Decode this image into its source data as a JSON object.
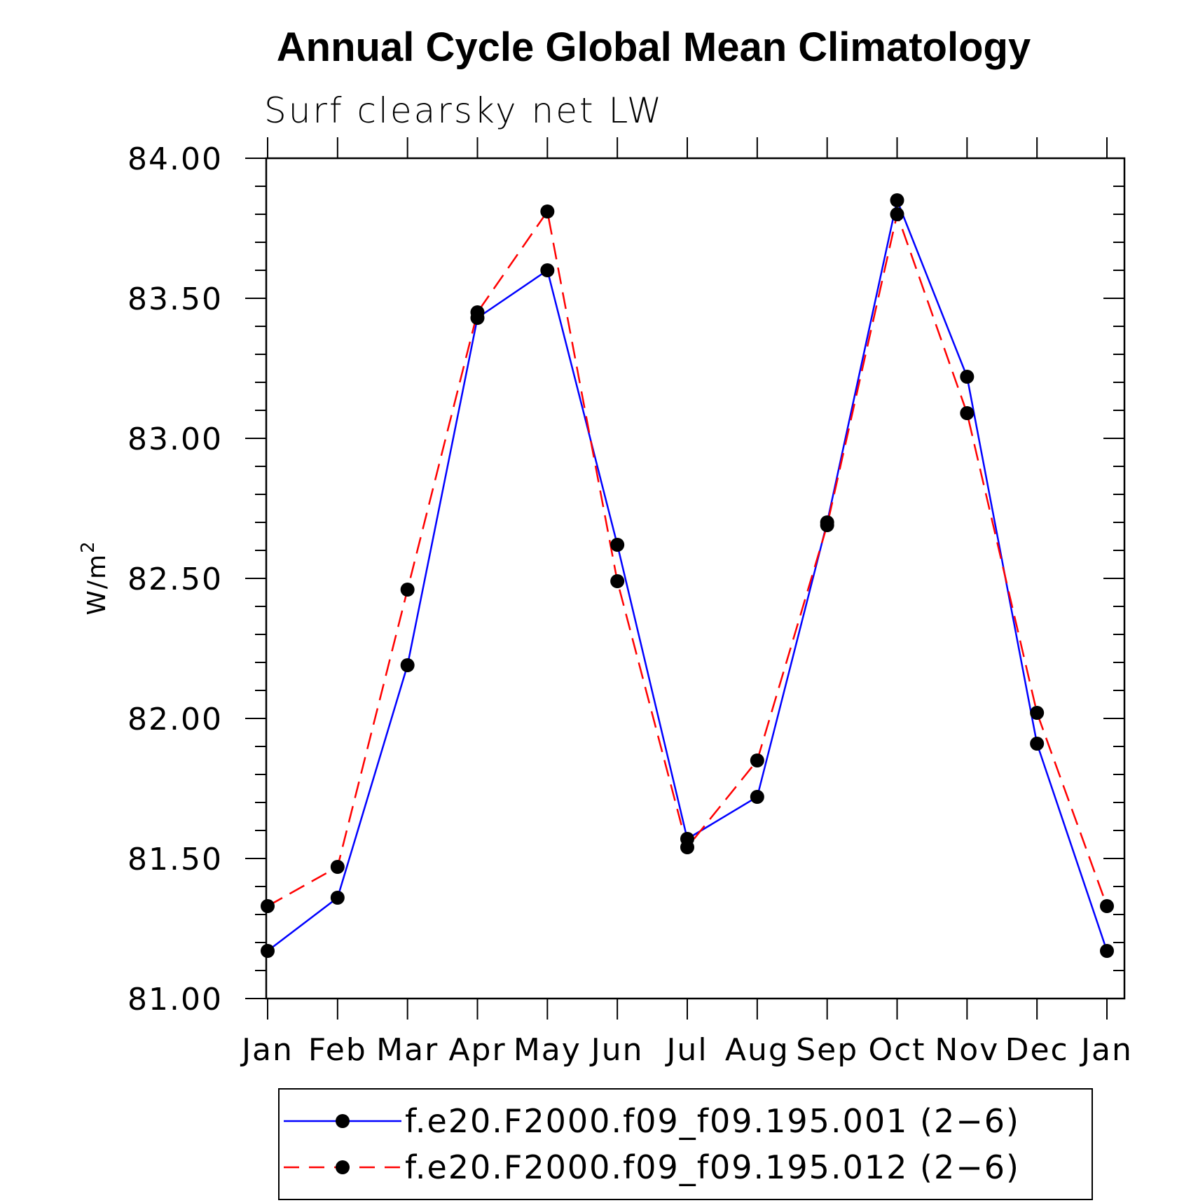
{
  "colors": {
    "series_1": "#0000ff",
    "series_2": "#ff0000",
    "marker": "#000000",
    "axis": "#000000"
  },
  "chart_data": {
    "type": "line",
    "title": "Annual Cycle Global Mean Climatology",
    "subtitle": "Surf clearsky net LW",
    "xlabel": "",
    "ylabel": "W/m",
    "ylabel_superscript": "2",
    "categories": [
      "Jan",
      "Feb",
      "Mar",
      "Apr",
      "May",
      "Jun",
      "Jul",
      "Aug",
      "Sep",
      "Oct",
      "Nov",
      "Dec",
      "Jan"
    ],
    "ylim": [
      81.0,
      84.0
    ],
    "yticks": [
      "81.00",
      "81.50",
      "82.00",
      "82.50",
      "83.00",
      "83.50",
      "84.00"
    ],
    "grid": false,
    "legend_position": "bottom",
    "series": [
      {
        "name": "f.e20.F2000.f09_f09.195.001 (2−6)",
        "line_style": "solid",
        "values": [
          81.17,
          81.36,
          82.19,
          83.43,
          83.6,
          82.62,
          81.57,
          81.72,
          82.7,
          83.85,
          83.22,
          81.91,
          81.17
        ]
      },
      {
        "name": "f.e20.F2000.f09_f09.195.012 (2−6)",
        "line_style": "dashed",
        "values": [
          81.33,
          81.47,
          82.46,
          83.45,
          83.81,
          82.49,
          81.54,
          81.85,
          82.69,
          83.8,
          83.09,
          82.02,
          81.33
        ]
      }
    ]
  }
}
